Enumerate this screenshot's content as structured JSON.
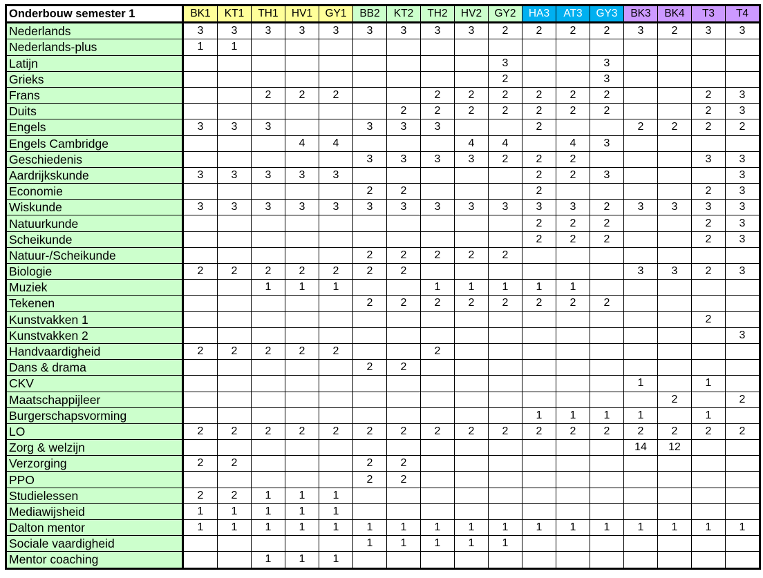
{
  "title": "Onderbouw semester 1",
  "columns": [
    {
      "label": "BK1",
      "color": "#ffff99"
    },
    {
      "label": "KT1",
      "color": "#ffff99"
    },
    {
      "label": "TH1",
      "color": "#ffff99"
    },
    {
      "label": "HV1",
      "color": "#ffff99"
    },
    {
      "label": "GY1",
      "color": "#ffff99"
    },
    {
      "label": "BB2",
      "color": "#ccffcc"
    },
    {
      "label": "KT2",
      "color": "#ccffcc"
    },
    {
      "label": "TH2",
      "color": "#ccffcc"
    },
    {
      "label": "HV2",
      "color": "#ccffcc"
    },
    {
      "label": "GY2",
      "color": "#ccffcc"
    },
    {
      "label": "HA3",
      "color": "#00b0f0"
    },
    {
      "label": "AT3",
      "color": "#00b0f0"
    },
    {
      "label": "GY3",
      "color": "#00b0f0"
    },
    {
      "label": "BK3",
      "color": "#cc99ff"
    },
    {
      "label": "BK4",
      "color": "#cc99ff"
    },
    {
      "label": "T3",
      "color": "#cc99ff"
    },
    {
      "label": "T4",
      "color": "#cc99ff"
    }
  ],
  "rows": [
    {
      "subject": "Nederlands",
      "values": [
        "3",
        "3",
        "3",
        "3",
        "3",
        "3",
        "3",
        "3",
        "3",
        "2",
        "2",
        "2",
        "2",
        "3",
        "2",
        "3",
        "3"
      ]
    },
    {
      "subject": "Nederlands-plus",
      "values": [
        "1",
        "1",
        "",
        "",
        "",
        "",
        "",
        "",
        "",
        "",
        "",
        "",
        "",
        "",
        "",
        "",
        ""
      ]
    },
    {
      "subject": "Latijn",
      "values": [
        "",
        "",
        "",
        "",
        "",
        "",
        "",
        "",
        "",
        "3",
        "",
        "",
        "3",
        "",
        "",
        "",
        ""
      ]
    },
    {
      "subject": "Grieks",
      "values": [
        "",
        "",
        "",
        "",
        "",
        "",
        "",
        "",
        "",
        "2",
        "",
        "",
        "3",
        "",
        "",
        "",
        ""
      ]
    },
    {
      "subject": "Frans",
      "values": [
        "",
        "",
        "2",
        "2",
        "2",
        "",
        "",
        "2",
        "2",
        "2",
        "2",
        "2",
        "2",
        "",
        "",
        "2",
        "3"
      ]
    },
    {
      "subject": "Duits",
      "values": [
        "",
        "",
        "",
        "",
        "",
        "",
        "2",
        "2",
        "2",
        "2",
        "2",
        "2",
        "2",
        "",
        "",
        "2",
        "3"
      ]
    },
    {
      "subject": "Engels",
      "values": [
        "3",
        "3",
        "3",
        "",
        "",
        "3",
        "3",
        "3",
        "",
        "",
        "2",
        "",
        "",
        "2",
        "2",
        "2",
        "2"
      ]
    },
    {
      "subject": "Engels Cambridge",
      "values": [
        "",
        "",
        "",
        "4",
        "4",
        "",
        "",
        "",
        "4",
        "4",
        "",
        "4",
        "3",
        "",
        "",
        "",
        ""
      ]
    },
    {
      "subject": "Geschiedenis",
      "values": [
        "",
        "",
        "",
        "",
        "",
        "3",
        "3",
        "3",
        "3",
        "2",
        "2",
        "2",
        "",
        "",
        "",
        "3",
        "3"
      ]
    },
    {
      "subject": "Aardrijkskunde",
      "values": [
        "3",
        "3",
        "3",
        "3",
        "3",
        "",
        "",
        "",
        "",
        "",
        "2",
        "2",
        "3",
        "",
        "",
        "",
        "3"
      ]
    },
    {
      "subject": "Economie",
      "values": [
        "",
        "",
        "",
        "",
        "",
        "2",
        "2",
        "",
        "",
        "",
        "2",
        "",
        "",
        "",
        "",
        "2",
        "3"
      ]
    },
    {
      "subject": "Wiskunde",
      "values": [
        "3",
        "3",
        "3",
        "3",
        "3",
        "3",
        "3",
        "3",
        "3",
        "3",
        "3",
        "3",
        "2",
        "3",
        "3",
        "3",
        "3"
      ]
    },
    {
      "subject": "Natuurkunde",
      "values": [
        "",
        "",
        "",
        "",
        "",
        "",
        "",
        "",
        "",
        "",
        "2",
        "2",
        "2",
        "",
        "",
        "2",
        "3"
      ]
    },
    {
      "subject": "Scheikunde",
      "values": [
        "",
        "",
        "",
        "",
        "",
        "",
        "",
        "",
        "",
        "",
        "2",
        "2",
        "2",
        "",
        "",
        "2",
        "3"
      ]
    },
    {
      "subject": "Natuur-/Scheikunde",
      "values": [
        "",
        "",
        "",
        "",
        "",
        "2",
        "2",
        "2",
        "2",
        "2",
        "",
        "",
        "",
        "",
        "",
        "",
        ""
      ]
    },
    {
      "subject": "Biologie",
      "values": [
        "2",
        "2",
        "2",
        "2",
        "2",
        "2",
        "2",
        "",
        "",
        "",
        "",
        "",
        "",
        "3",
        "3",
        "2",
        "3"
      ]
    },
    {
      "subject": "Muziek",
      "values": [
        "",
        "",
        "1",
        "1",
        "1",
        "",
        "",
        "1",
        "1",
        "1",
        "1",
        "1",
        "",
        "",
        "",
        "",
        ""
      ]
    },
    {
      "subject": "Tekenen",
      "values": [
        "",
        "",
        "",
        "",
        "",
        "2",
        "2",
        "2",
        "2",
        "2",
        "2",
        "2",
        "2",
        "",
        "",
        "",
        ""
      ]
    },
    {
      "subject": "Kunstvakken 1",
      "values": [
        "",
        "",
        "",
        "",
        "",
        "",
        "",
        "",
        "",
        "",
        "",
        "",
        "",
        "",
        "",
        "2",
        ""
      ]
    },
    {
      "subject": "Kunstvakken 2",
      "values": [
        "",
        "",
        "",
        "",
        "",
        "",
        "",
        "",
        "",
        "",
        "",
        "",
        "",
        "",
        "",
        "",
        "3"
      ]
    },
    {
      "subject": "Handvaardigheid",
      "values": [
        "2",
        "2",
        "2",
        "2",
        "2",
        "",
        "",
        "2",
        "",
        "",
        "",
        "",
        "",
        "",
        "",
        "",
        ""
      ]
    },
    {
      "subject": "Dans & drama",
      "values": [
        "",
        "",
        "",
        "",
        "",
        "2",
        "2",
        "",
        "",
        "",
        "",
        "",
        "",
        "",
        "",
        "",
        ""
      ]
    },
    {
      "subject": "CKV",
      "values": [
        "",
        "",
        "",
        "",
        "",
        "",
        "",
        "",
        "",
        "",
        "",
        "",
        "",
        "1",
        "",
        "1",
        ""
      ]
    },
    {
      "subject": "Maatschappijleer",
      "values": [
        "",
        "",
        "",
        "",
        "",
        "",
        "",
        "",
        "",
        "",
        "",
        "",
        "",
        "",
        "2",
        "",
        "2"
      ]
    },
    {
      "subject": "Burgerschapsvorming",
      "values": [
        "",
        "",
        "",
        "",
        "",
        "",
        "",
        "",
        "",
        "",
        "1",
        "1",
        "1",
        "1",
        "",
        "1",
        ""
      ]
    },
    {
      "subject": "LO",
      "values": [
        "2",
        "2",
        "2",
        "2",
        "2",
        "2",
        "2",
        "2",
        "2",
        "2",
        "2",
        "2",
        "2",
        "2",
        "2",
        "2",
        "2"
      ]
    },
    {
      "subject": "Zorg & welzijn",
      "values": [
        "",
        "",
        "",
        "",
        "",
        "",
        "",
        "",
        "",
        "",
        "",
        "",
        "",
        "14",
        "12",
        "",
        ""
      ]
    },
    {
      "subject": "Verzorging",
      "values": [
        "2",
        "2",
        "",
        "",
        "",
        "2",
        "2",
        "",
        "",
        "",
        "",
        "",
        "",
        "",
        "",
        "",
        ""
      ]
    },
    {
      "subject": "PPO",
      "values": [
        "",
        "",
        "",
        "",
        "",
        "2",
        "2",
        "",
        "",
        "",
        "",
        "",
        "",
        "",
        "",
        "",
        ""
      ]
    },
    {
      "subject": "Studielessen",
      "values": [
        "2",
        "2",
        "1",
        "1",
        "1",
        "",
        "",
        "",
        "",
        "",
        "",
        "",
        "",
        "",
        "",
        "",
        ""
      ]
    },
    {
      "subject": "Mediawijsheid",
      "values": [
        "1",
        "1",
        "1",
        "1",
        "1",
        "",
        "",
        "",
        "",
        "",
        "",
        "",
        "",
        "",
        "",
        "",
        ""
      ]
    },
    {
      "subject": "Dalton mentor",
      "values": [
        "1",
        "1",
        "1",
        "1",
        "1",
        "1",
        "1",
        "1",
        "1",
        "1",
        "1",
        "1",
        "1",
        "1",
        "1",
        "1",
        "1"
      ]
    },
    {
      "subject": "Sociale vaardigheid",
      "values": [
        "",
        "",
        "",
        "",
        "",
        "1",
        "1",
        "1",
        "1",
        "1",
        "",
        "",
        "",
        "",
        "",
        "",
        ""
      ]
    },
    {
      "subject": "Mentor coaching",
      "values": [
        "",
        "",
        "1",
        "1",
        "1",
        "",
        "",
        "",
        "",
        "",
        "",
        "",
        "",
        "",
        "",
        "",
        ""
      ]
    }
  ]
}
